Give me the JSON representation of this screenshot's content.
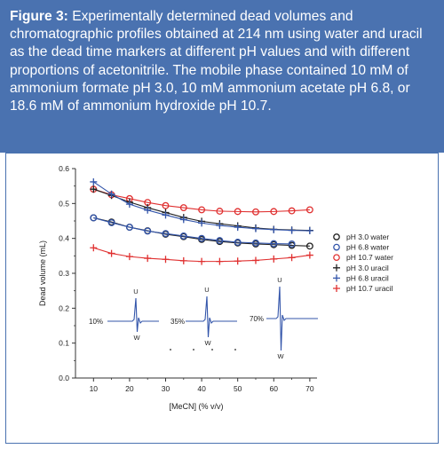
{
  "figure": {
    "caption_label": "Figure 3:",
    "caption_text": "Experimentally determined dead volumes and chromatographic profiles obtained at 214 nm using water and uracil as the dead time markers at different pH values and with different proportions of acetonitrile. The mobile phase contained 10 mM of ammonium formate pH 3.0, 10 mM ammonium acetate pH 6.8, or 18.6 mM of ammonium hydroxide pH 10.7.",
    "caption_color": "#4a72b0"
  },
  "chart_data": {
    "type": "line",
    "title": "",
    "xlabel": "[MeCN] (% v/v)",
    "ylabel": "Dead volume (mL)",
    "xlim": [
      5,
      72
    ],
    "ylim": [
      0.0,
      0.6
    ],
    "xticks": [
      10,
      20,
      30,
      40,
      50,
      60,
      70
    ],
    "yticks": [
      0.0,
      0.1,
      0.2,
      0.3,
      0.4,
      0.5,
      0.6
    ],
    "ytick_labels": [
      "0.0",
      "0.1",
      "0.2",
      "0.3",
      "0.4",
      "0.5",
      "0.6"
    ],
    "grid": false,
    "legend_position": "right",
    "series": [
      {
        "name": "pH 3.0 water",
        "marker": "circle",
        "color": "#222222",
        "x": [
          10,
          15,
          20,
          25,
          30,
          35,
          40,
          45,
          50,
          55,
          60,
          65,
          70
        ],
        "y": [
          0.459,
          0.447,
          0.432,
          0.422,
          0.412,
          0.405,
          0.397,
          0.391,
          0.387,
          0.384,
          0.382,
          0.38,
          0.378
        ]
      },
      {
        "name": "pH 6.8 water",
        "marker": "circle",
        "color": "#3355aa",
        "x": [
          10,
          15,
          20,
          25,
          30,
          35,
          40,
          45,
          50,
          55,
          60,
          65
        ],
        "y": [
          0.459,
          0.445,
          0.432,
          0.421,
          0.414,
          0.407,
          0.4,
          0.394,
          0.389,
          0.387,
          0.385,
          0.384
        ]
      },
      {
        "name": "pH 10.7 water",
        "marker": "circle",
        "color": "#e03030",
        "x": [
          10,
          15,
          20,
          25,
          30,
          35,
          40,
          45,
          50,
          55,
          60,
          65,
          70
        ],
        "y": [
          0.541,
          0.525,
          0.514,
          0.503,
          0.494,
          0.488,
          0.482,
          0.478,
          0.477,
          0.476,
          0.477,
          0.479,
          0.482
        ]
      },
      {
        "name": "pH 3.0 uracil",
        "marker": "plus",
        "color": "#222222",
        "x": [
          10,
          15,
          20,
          25,
          30,
          35,
          40,
          45,
          50,
          55,
          60,
          65,
          70
        ],
        "y": [
          0.541,
          0.523,
          0.504,
          0.488,
          0.474,
          0.46,
          0.449,
          0.442,
          0.436,
          0.43,
          0.426,
          0.424,
          0.423
        ]
      },
      {
        "name": "pH 6.8 uracil",
        "marker": "plus",
        "color": "#3355aa",
        "x": [
          10,
          15,
          20,
          25,
          30,
          35,
          40,
          45,
          50,
          55,
          60,
          65,
          70
        ],
        "y": [
          0.562,
          0.527,
          0.498,
          0.481,
          0.467,
          0.454,
          0.444,
          0.437,
          0.432,
          0.428,
          0.425,
          0.423,
          0.422
        ]
      },
      {
        "name": "pH 10.7 uracil",
        "marker": "plus",
        "color": "#e03030",
        "x": [
          10,
          15,
          20,
          25,
          30,
          35,
          40,
          45,
          50,
          55,
          60,
          65,
          70
        ],
        "y": [
          0.373,
          0.357,
          0.348,
          0.343,
          0.34,
          0.336,
          0.334,
          0.334,
          0.335,
          0.337,
          0.341,
          0.345,
          0.352
        ]
      }
    ],
    "chromatogram_insets": [
      {
        "label": "10%",
        "peak_top": "U",
        "peak_bottom": "W"
      },
      {
        "label": "35%",
        "peak_top": "U",
        "peak_bottom": "W"
      },
      {
        "label": "70%",
        "peak_top": "U",
        "peak_bottom": "W"
      }
    ],
    "inset_color": "#3355aa"
  }
}
